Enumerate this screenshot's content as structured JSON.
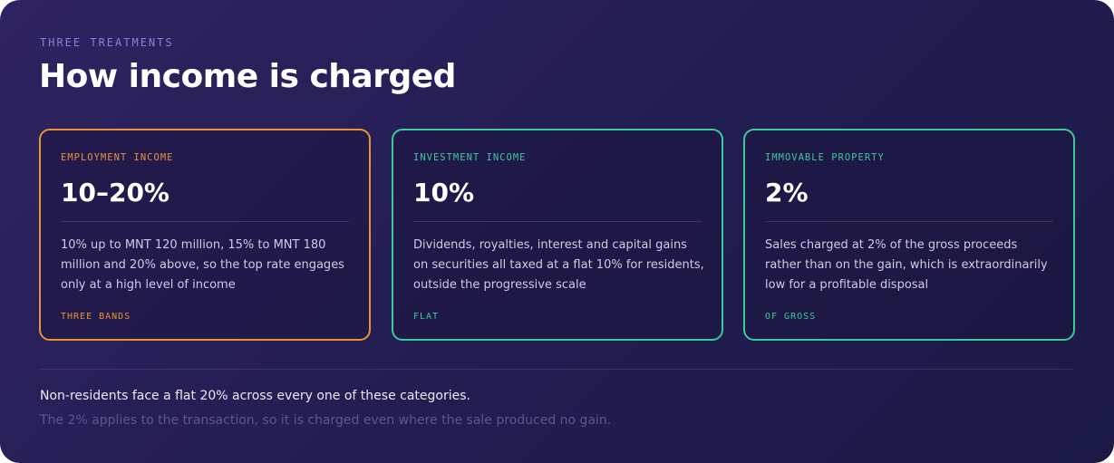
{
  "header": {
    "eyebrow": "THREE TREATMENTS",
    "title": "How income is charged"
  },
  "cards": [
    {
      "label": "EMPLOYMENT INCOME",
      "rate": "10–20%",
      "description": "10% up to MNT 120 million, 15% to MNT 180 million and 20% above, so the top rate engages only at a high level of income",
      "tag": "THREE BANDS"
    },
    {
      "label": "INVESTMENT INCOME",
      "rate": "10%",
      "description": "Dividends, royalties, interest and capital gains on securities all taxed at a flat 10% for residents, outside the progressive scale",
      "tag": "FLAT"
    },
    {
      "label": "IMMOVABLE PROPERTY",
      "rate": "2%",
      "description": "Sales charged at 2% of the gross proceeds rather than on the gain, which is extraordinarily low for a profitable disposal",
      "tag": "OF GROSS"
    }
  ],
  "footer": {
    "note": "Non-residents face a flat 20% across every one of these categories.",
    "subnote": "The 2% applies to the transaction, so it is charged even where the sale produced no gain."
  }
}
